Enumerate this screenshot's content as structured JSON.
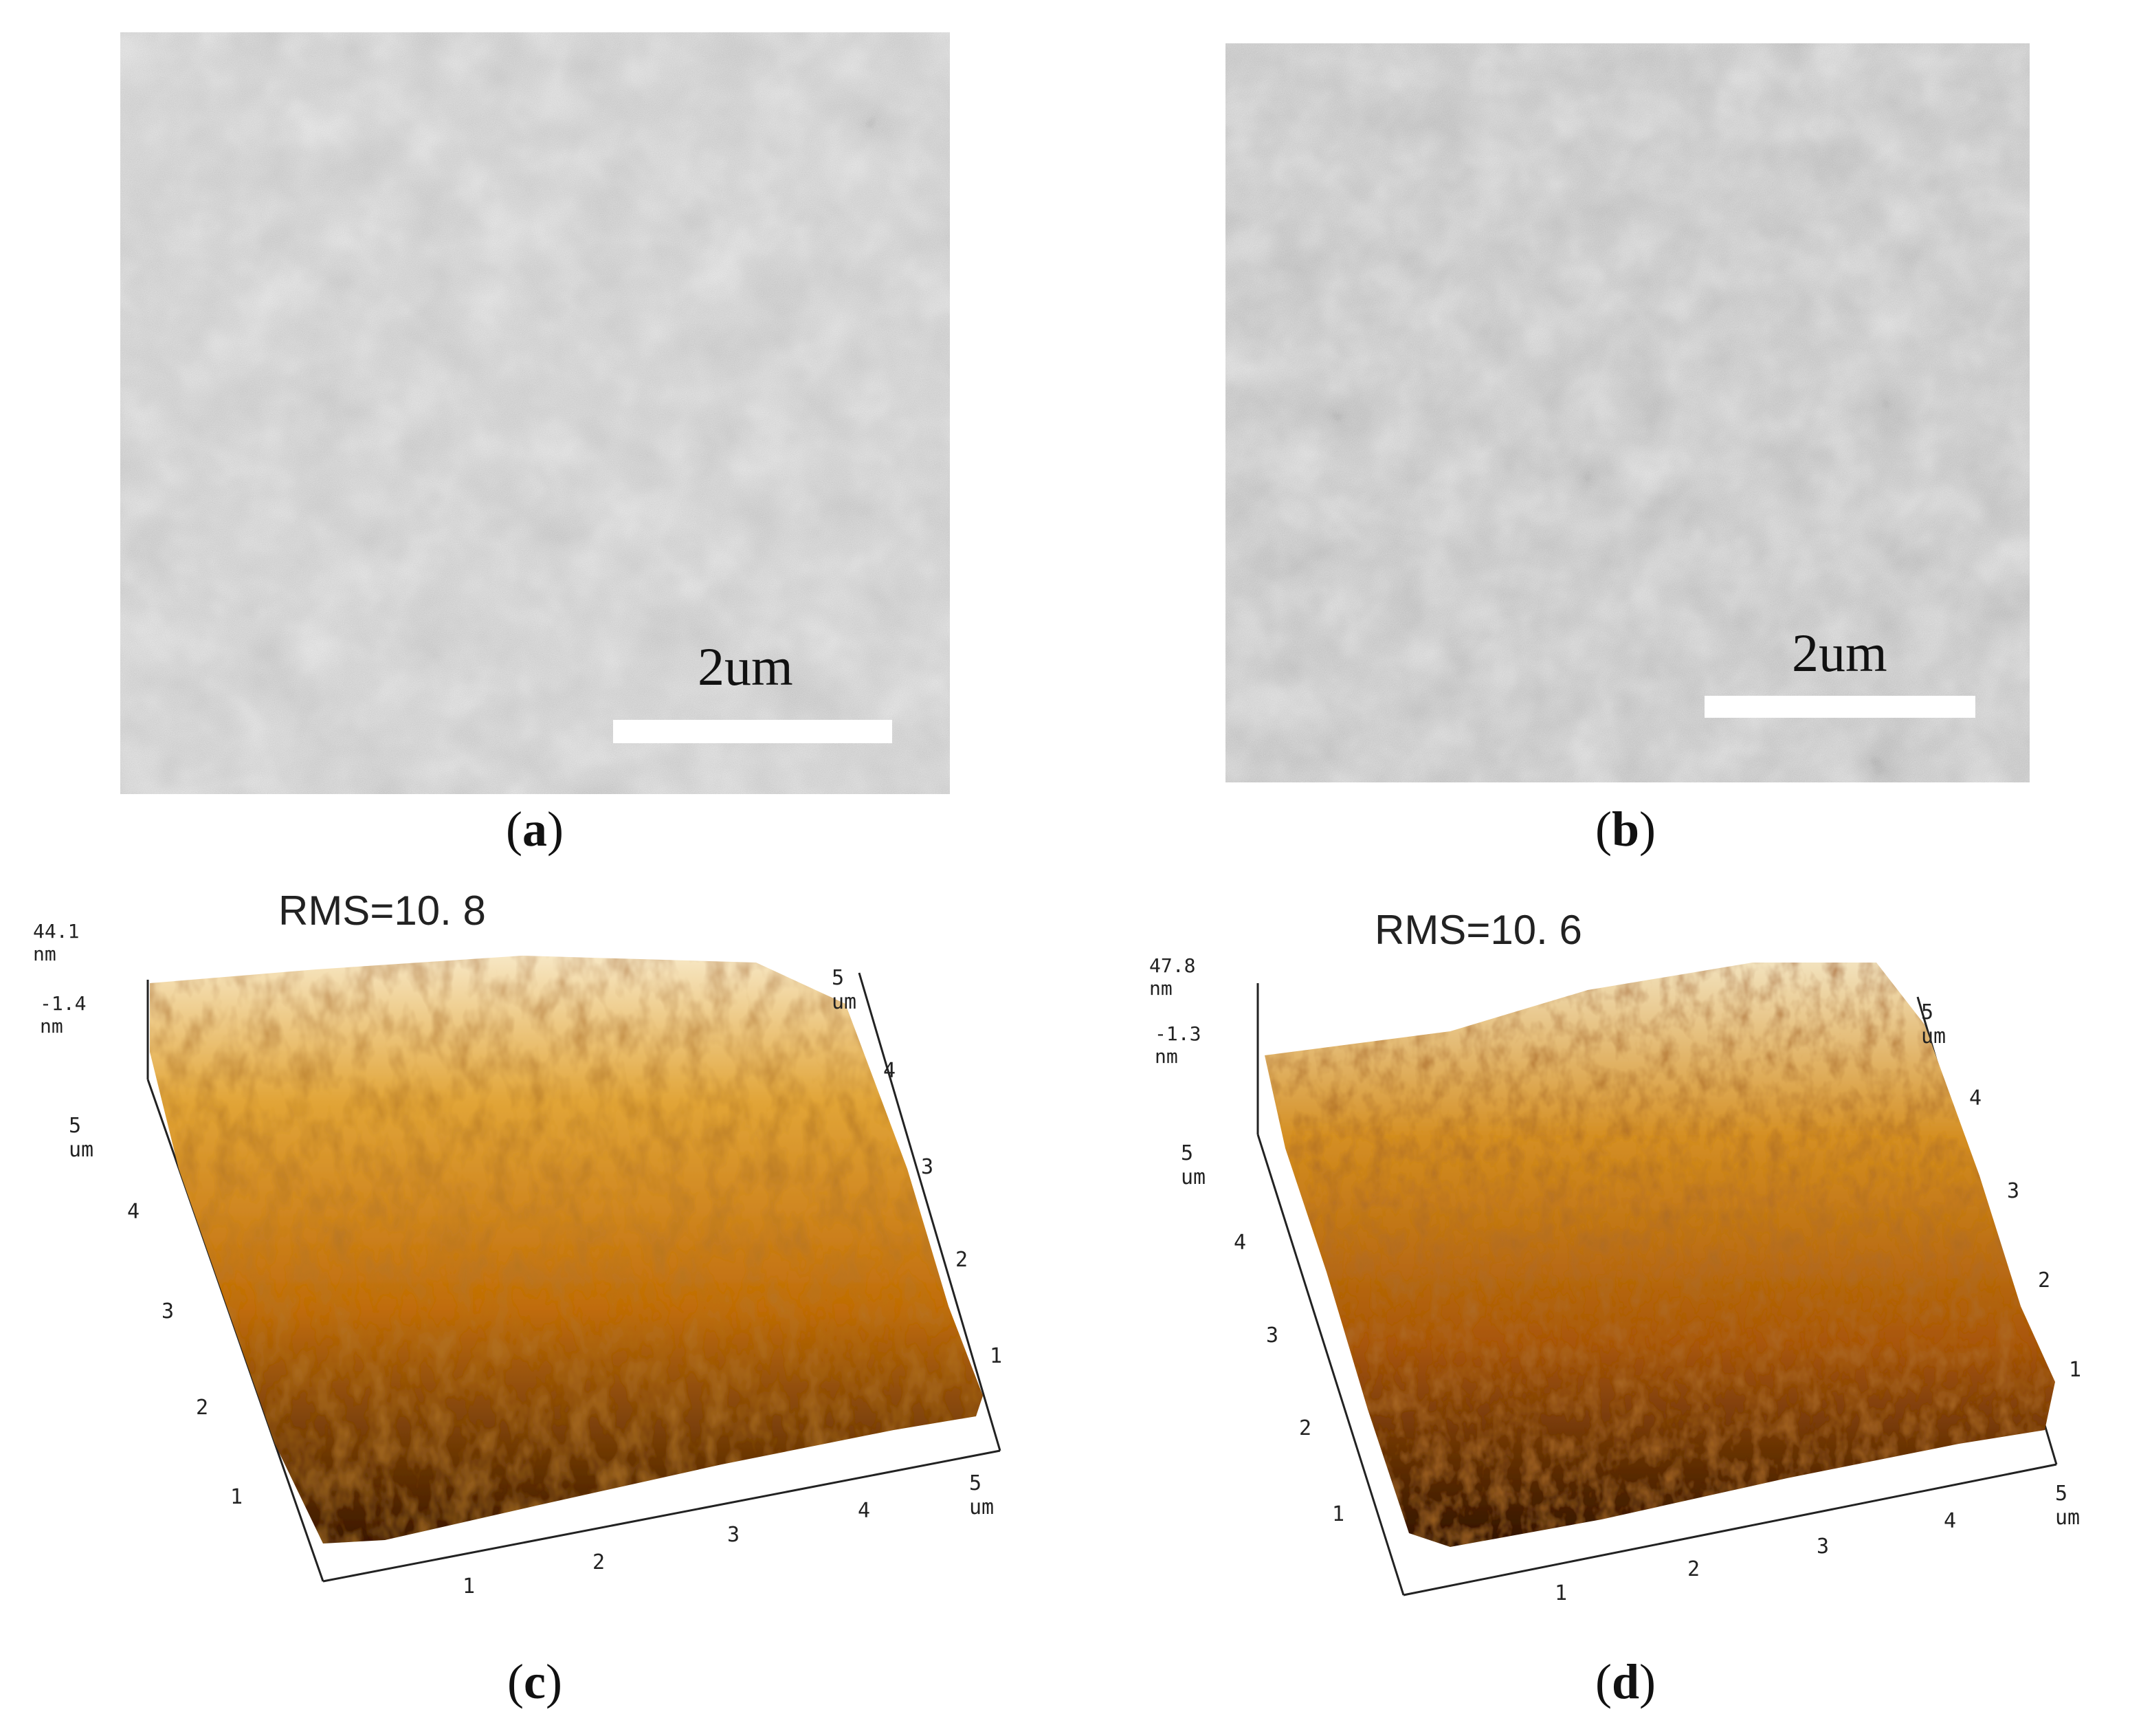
{
  "panels": [
    {
      "id": "a",
      "caption_letter": "a",
      "scale_label": "2um"
    },
    {
      "id": "b",
      "caption_letter": "b",
      "scale_label": "2um"
    },
    {
      "id": "c",
      "caption_letter": "c",
      "rms_label": "RMS=10. 8",
      "z_max": "44.1 nm",
      "z_min": "-1.4 nm",
      "x_axis_ticks": [
        "1",
        "2",
        "3",
        "4",
        "5 um"
      ],
      "y_axis_ticks": [
        "1",
        "2",
        "3",
        "4",
        "5 um"
      ],
      "right_axis_ticks": [
        "1",
        "2",
        "3",
        "4",
        "5 um"
      ]
    },
    {
      "id": "d",
      "caption_letter": "d",
      "rms_label": "RMS=10. 6",
      "z_max": "47.8 nm",
      "z_min": "-1.3 nm",
      "x_axis_ticks": [
        "1",
        "2",
        "3",
        "4",
        "5 um"
      ],
      "y_axis_ticks": [
        "1",
        "2",
        "3",
        "4",
        "5 um"
      ],
      "right_axis_ticks": [
        "1",
        "2",
        "3",
        "4",
        "5 um"
      ]
    }
  ],
  "colors": {
    "sem_gray": "#8c8c8c",
    "afm_dark": "#6b2a05",
    "afm_mid": "#c8770f",
    "afm_light": "#f2d9a0"
  }
}
